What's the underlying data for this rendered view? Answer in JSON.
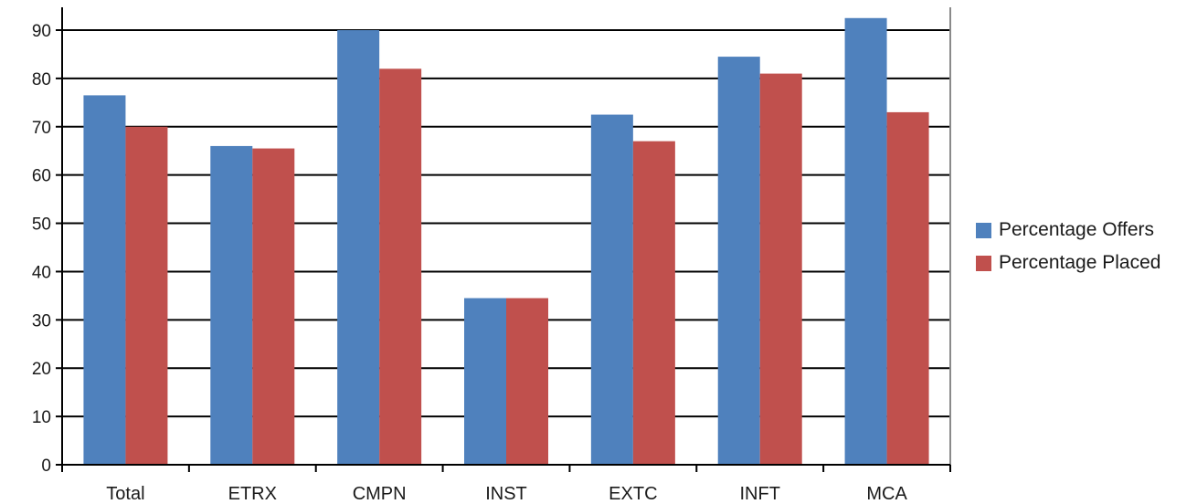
{
  "chart_data": {
    "type": "bar",
    "title": "",
    "xlabel": "",
    "ylabel": "",
    "categories": [
      "Total",
      "ETRX",
      "CMPN",
      "INST",
      "EXTC",
      "INFT",
      "MCA"
    ],
    "series": [
      {
        "name": "Percentage Offers",
        "color": "#4F81BD",
        "values": [
          76.5,
          66,
          90,
          34.5,
          72.5,
          84.5,
          92.5
        ]
      },
      {
        "name": "Percentage Placed",
        "color": "#C0504D",
        "values": [
          70,
          65.5,
          82,
          34.5,
          67,
          81,
          73
        ]
      }
    ],
    "ylim": [
      0,
      90
    ],
    "yticks": [
      0,
      10,
      20,
      30,
      40,
      50,
      60,
      70,
      80,
      90
    ],
    "grid": true,
    "legend_position": "right"
  }
}
